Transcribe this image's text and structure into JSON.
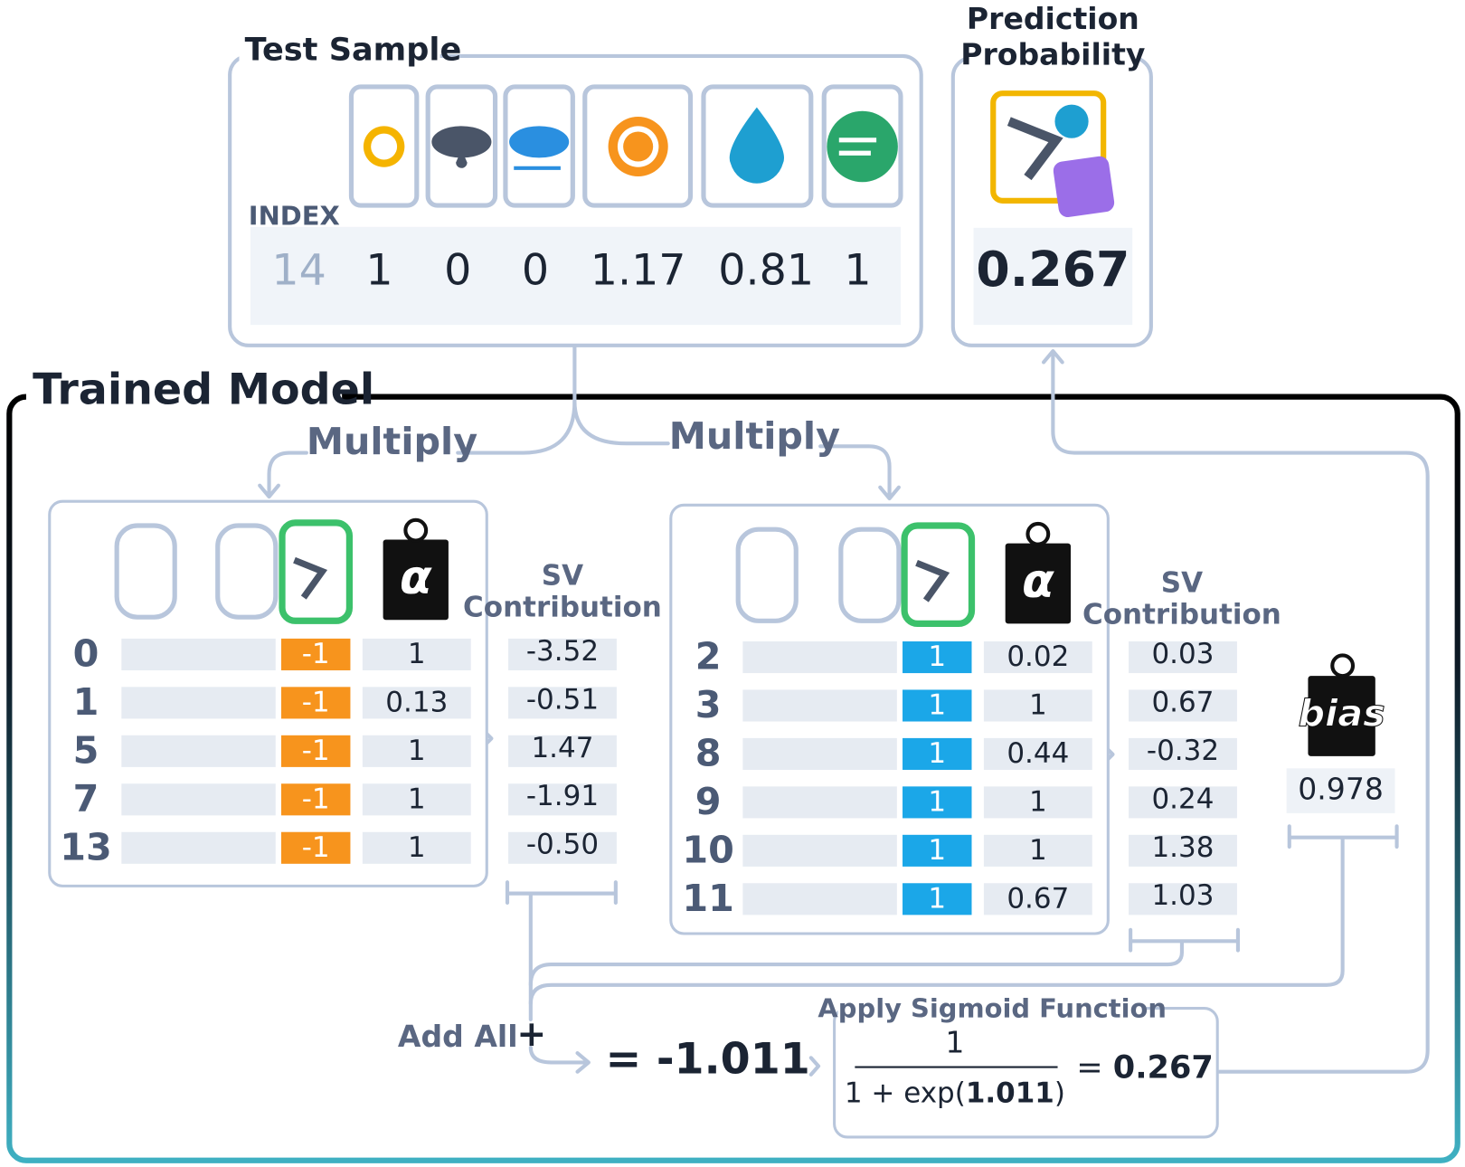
{
  "test_sample": {
    "title": "Test Sample",
    "index_label": "INDEX",
    "index": "14",
    "values": [
      "1",
      "0",
      "0",
      "1.17",
      "0.81",
      "1"
    ]
  },
  "prediction": {
    "title_lines": [
      "Prediction",
      "Probability"
    ],
    "value": "0.267"
  },
  "model": {
    "title": "Trained Model",
    "multiply_labels": [
      "Multiply",
      "Multiply"
    ],
    "alpha_symbol": "α",
    "negative": {
      "sv_header": [
        "SV",
        "Contribution"
      ],
      "rows": [
        {
          "index": "0",
          "label": "-1",
          "alpha": "1",
          "contribution": "-3.52"
        },
        {
          "index": "1",
          "label": "-1",
          "alpha": "0.13",
          "contribution": "-0.51"
        },
        {
          "index": "5",
          "label": "-1",
          "alpha": "1",
          "contribution": "1.47"
        },
        {
          "index": "7",
          "label": "-1",
          "alpha": "1",
          "contribution": "-1.91"
        },
        {
          "index": "13",
          "label": "-1",
          "alpha": "1",
          "contribution": "-0.50"
        }
      ]
    },
    "positive": {
      "sv_header": [
        "SV",
        "Contribution"
      ],
      "rows": [
        {
          "index": "2",
          "label": "1",
          "alpha": "0.02",
          "contribution": "0.03"
        },
        {
          "index": "3",
          "label": "1",
          "alpha": "1",
          "contribution": "0.67"
        },
        {
          "index": "8",
          "label": "1",
          "alpha": "0.44",
          "contribution": "-0.32"
        },
        {
          "index": "9",
          "label": "1",
          "alpha": "1",
          "contribution": "0.24"
        },
        {
          "index": "10",
          "label": "1",
          "alpha": "1",
          "contribution": "1.38"
        },
        {
          "index": "11",
          "label": "1",
          "alpha": "0.67",
          "contribution": "1.03"
        }
      ]
    },
    "bias": {
      "label": "bias",
      "value": "0.978"
    },
    "add_all": "Add All",
    "add_symbol": "+",
    "sum": "= -1.011",
    "sigmoid": {
      "title": "Apply Sigmoid Function",
      "numerator": "1",
      "denominator_prefix": "1 + exp(",
      "denominator_value": "1.011",
      "denominator_suffix": ")",
      "result_prefix": "= ",
      "result": "0.267"
    }
  }
}
